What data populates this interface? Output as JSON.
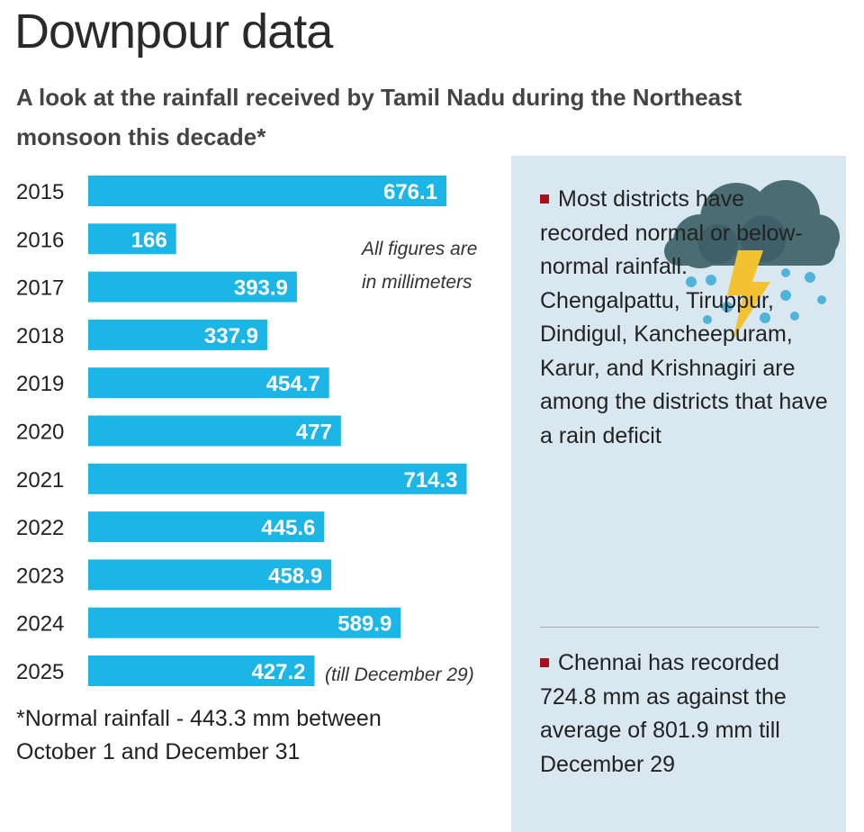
{
  "header": {
    "title": "Downpour data",
    "subtitle": "A look at the rainfall received by Tamil Nadu during the Northeast monsoon this decade*"
  },
  "chart_data": {
    "type": "bar",
    "orientation": "horizontal",
    "title": "Downpour data",
    "categories": [
      "2015",
      "2016",
      "2017",
      "2018",
      "2019",
      "2020",
      "2021",
      "2022",
      "2023",
      "2024",
      "2025"
    ],
    "values": [
      676.1,
      166,
      393.9,
      337.9,
      454.7,
      477,
      714.3,
      445.6,
      458.9,
      589.9,
      427.2
    ],
    "value_labels": [
      "676.1",
      "166",
      "393.9",
      "337.9",
      "454.7",
      "477",
      "714.3",
      "445.6",
      "458.9",
      "589.9",
      "427.2"
    ],
    "xlabel": "",
    "ylabel": "",
    "xlim": [
      0,
      800
    ],
    "grid": false,
    "bar_color": "#1cb6e6",
    "annotations": {
      "units_note": [
        "All figures are",
        "in millimeters"
      ],
      "last_bar_note": "(till December 29)"
    }
  },
  "footnote": [
    "*Normal rainfall - 443.3 mm between",
    "October 1 and December 31"
  ],
  "panel": {
    "bullet_color": "#a8101c",
    "icon": "storm-cloud-icon",
    "point1": "Most districts have recorded normal or below-normal rainfall. Chengalpattu, Tiruppur, Dindigul, Kancheepuram, Karur, and Krishnagiri are among the districts that have a rain deficit",
    "point2": "Chennai has recorded 724.8 mm as against the average of 801.9 mm till December 29"
  }
}
